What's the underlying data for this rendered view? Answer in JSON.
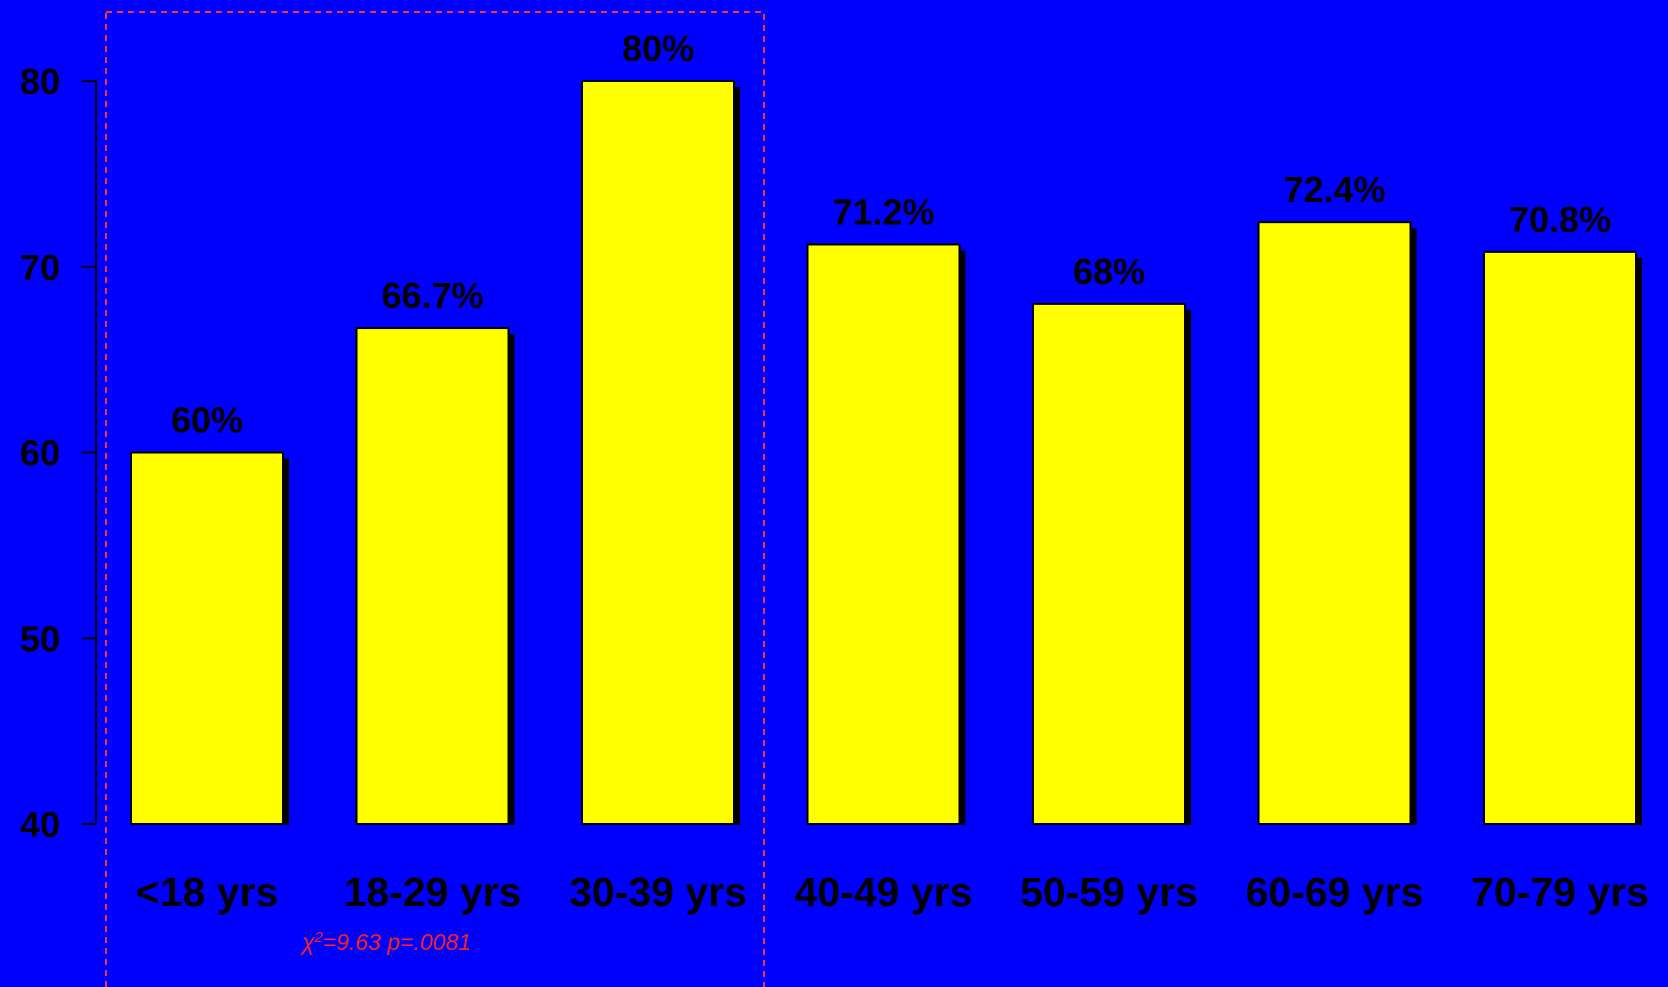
{
  "chart_data": {
    "type": "bar",
    "title": "",
    "xlabel": "",
    "ylabel": "",
    "categories": [
      "<18 yrs",
      "18-29 yrs",
      "30-39 yrs",
      "40-49 yrs",
      "50-59 yrs",
      "60-69 yrs",
      "70-79 yrs"
    ],
    "values": [
      60,
      66.7,
      80,
      71.2,
      68,
      72.4,
      70.8
    ],
    "data_labels": [
      "60%",
      "66.7%",
      "80%",
      "71.2%",
      "68%",
      "72.4%",
      "70.8%"
    ],
    "ylim": [
      40,
      80
    ],
    "yticks": [
      40,
      50,
      60,
      70,
      80
    ],
    "ytick_labels": [
      "40",
      "50",
      "60",
      "70",
      "80"
    ],
    "grid": false,
    "legend": "none",
    "highlight_group": {
      "categories": [
        "<18 yrs",
        "18-29 yrs",
        "30-39 yrs"
      ],
      "style": "dashed-box"
    },
    "annotation": {
      "symbol": "χ",
      "superscript": "2",
      "text": "=9.63 p=.0081"
    },
    "colors": {
      "background": "#0000FF",
      "bar": "#FFFF00",
      "shadow": "#000000",
      "annotation": "#FF2020",
      "highlight_box": "#FF3030"
    }
  }
}
